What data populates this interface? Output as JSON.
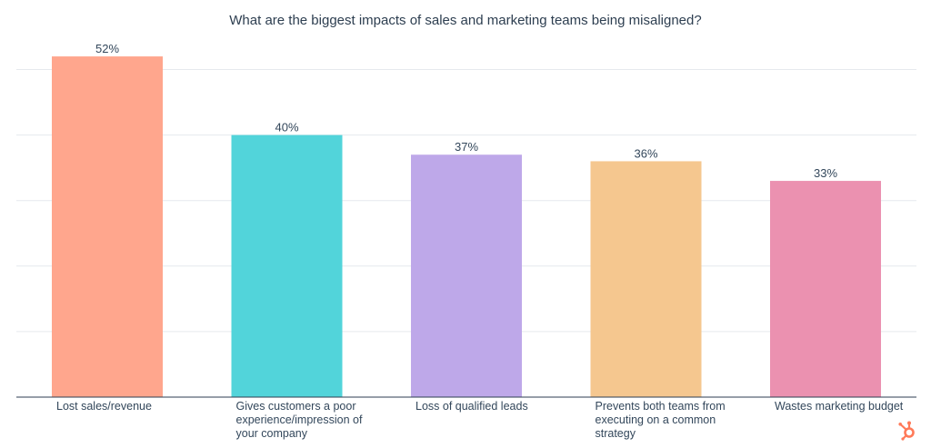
{
  "chart_data": {
    "type": "bar",
    "title": "What are the biggest impacts of sales and marketing teams being misaligned?",
    "categories": [
      "Lost sales/revenue",
      "Gives customers a poor experience/impression of your company",
      "Loss of qualified leads",
      "Prevents both teams from executing on a common strategy",
      "Wastes marketing budget"
    ],
    "values": [
      52,
      40,
      37,
      36,
      33
    ],
    "data_labels": [
      "52%",
      "40%",
      "37%",
      "36%",
      "33%"
    ],
    "colors": [
      "#ffa68d",
      "#52d4da",
      "#bea8e9",
      "#f5c78f",
      "#eb91b0"
    ],
    "ylim": [
      0,
      50
    ],
    "grid": true,
    "xlabel": "",
    "ylabel": ""
  },
  "brand": {
    "logo_icon": "hubspot-sprocket-icon",
    "logo_color": "#ff7a59"
  }
}
